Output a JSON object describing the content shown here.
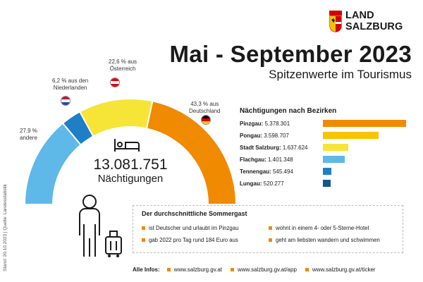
{
  "logo": {
    "line1": "LAND",
    "line2": "SALZBURG"
  },
  "header": {
    "title": "Mai - September 2023",
    "subtitle": "Spitzenwerte im Tourismus"
  },
  "gauge": {
    "total_value": "13.081.751",
    "total_label": "Nächtigungen",
    "labels": {
      "andere": [
        "27,9 %",
        "andere"
      ],
      "nl": [
        "6,2 % aus den",
        "Niederlanden"
      ],
      "at": [
        "22,6 % aus",
        "Österreich"
      ],
      "de": [
        "43,3 % aus",
        "Deutschland"
      ]
    }
  },
  "bars": {
    "title": "Nächtigungen nach Bezirken"
  },
  "colors": {
    "orange": "#f08a00",
    "yellow": "#f6e437",
    "lightblue": "#5eb8e8",
    "blue": "#1f7fc4",
    "darkblue": "#14558c"
  },
  "chart_data": [
    {
      "type": "pie",
      "subtype": "half-donut",
      "title": "13.081.751 Nächtigungen",
      "categories": [
        "andere",
        "Niederlande",
        "Österreich",
        "Deutschland"
      ],
      "values": [
        27.9,
        6.2,
        22.6,
        43.3
      ],
      "unit": "%",
      "colors": [
        "#5eb8e8",
        "#1f7fc4",
        "#f6e437",
        "#f08a00"
      ]
    },
    {
      "type": "bar",
      "orientation": "horizontal",
      "title": "Nächtigungen nach Bezirken",
      "categories": [
        "Pinzgau",
        "Pongau",
        "Stadt Salzburg",
        "Flachgau",
        "Tennengau",
        "Lungau"
      ],
      "values": [
        5378301,
        3598707,
        1637624,
        1401348,
        545494,
        520277
      ],
      "value_labels": [
        "5.378.301",
        "3.598.707",
        "1.637.624",
        "1.401.348",
        "545.494",
        "520.277"
      ],
      "colors": [
        "#f08a00",
        "#f6c400",
        "#f6e437",
        "#5eb8e8",
        "#1f7fc4",
        "#14558c"
      ]
    }
  ],
  "info": {
    "title": "Der durchschnittliche Sommergast",
    "facts": [
      "ist Deutscher und urlaubt im Pinzgau",
      "wohnt in einem 4- oder 5-Sterne-Hotel",
      "gab 2022 pro Tag rund 184 Euro aus",
      "geht am liebsten wandern und schwimmen"
    ]
  },
  "footer": {
    "label": "Alle Infos:",
    "links": [
      "www.salzburg.gv.at",
      "www.salzburg.gv.at/app",
      "www.salzburg.gv.at/ticker"
    ]
  },
  "source": "Stand: 20.10.2023 | Quelle: Landesstatistik"
}
